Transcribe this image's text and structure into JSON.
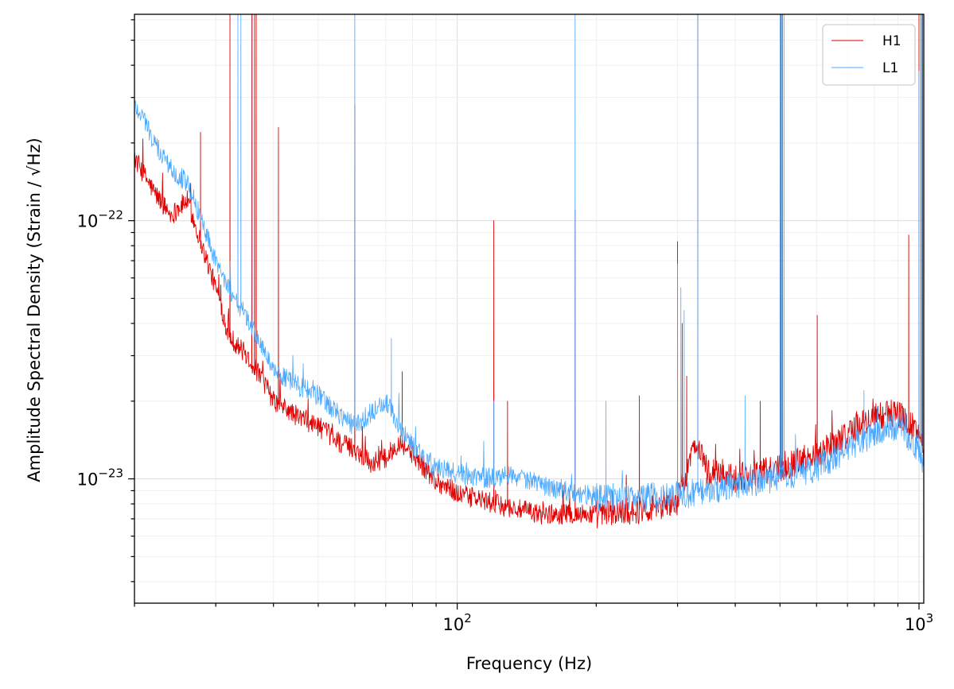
{
  "chart_data": {
    "type": "line",
    "title": "",
    "xlabel": "Frequency (Hz)",
    "ylabel": "Amplitude Spectral Density (Strain / √Hz)",
    "xscale": "log",
    "yscale": "log",
    "xlim": [
      20,
      1024
    ],
    "ylim": [
      3.3e-24,
      6.3e-22
    ],
    "x_ticks": [
      {
        "value": 100,
        "label_base": "10",
        "label_exp": "2"
      },
      {
        "value": 1000,
        "label_base": "10",
        "label_exp": "3"
      }
    ],
    "y_ticks": [
      {
        "value": 1e-23,
        "label_base": "10",
        "label_exp": "−23"
      },
      {
        "value": 1e-22,
        "label_base": "10",
        "label_exp": "−22"
      }
    ],
    "grid": true,
    "legend": "top-right",
    "series": [
      {
        "name": "H1",
        "color": "#e00000",
        "baseline": [
          [
            20,
            1.75e-22
          ],
          [
            22,
            1.3e-22
          ],
          [
            24,
            1.05e-22
          ],
          [
            26,
            1.2e-22
          ],
          [
            28,
            8e-23
          ],
          [
            30,
            5.5e-23
          ],
          [
            32,
            3.6e-23
          ],
          [
            35,
            3e-23
          ],
          [
            38,
            2.4e-23
          ],
          [
            40,
            2e-23
          ],
          [
            45,
            1.75e-23
          ],
          [
            50,
            1.6e-23
          ],
          [
            55,
            1.4e-23
          ],
          [
            60,
            1.3e-23
          ],
          [
            65,
            1.15e-23
          ],
          [
            70,
            1.2e-23
          ],
          [
            75,
            1.4e-23
          ],
          [
            80,
            1.25e-23
          ],
          [
            90,
            9.8e-24
          ],
          [
            100,
            8.8e-24
          ],
          [
            120,
            8e-24
          ],
          [
            150,
            7.3e-24
          ],
          [
            200,
            7.3e-24
          ],
          [
            250,
            7.6e-24
          ],
          [
            300,
            8.2e-24
          ],
          [
            330,
            1.4e-23
          ],
          [
            350,
            1.05e-23
          ],
          [
            380,
            1.05e-23
          ],
          [
            400,
            1e-23
          ],
          [
            500,
            1.1e-23
          ],
          [
            600,
            1.25e-23
          ],
          [
            700,
            1.5e-23
          ],
          [
            800,
            1.75e-23
          ],
          [
            900,
            1.8e-23
          ],
          [
            1000,
            1.5e-23
          ],
          [
            1024,
            1.3e-23
          ]
        ],
        "spikes": [
          [
            27.8,
            2.2e-22
          ],
          [
            32.2,
            6.3e-22
          ],
          [
            35.9,
            6.3e-22
          ],
          [
            36.4,
            6.3e-22
          ],
          [
            36.7,
            6.3e-22
          ],
          [
            41.0,
            2.3e-22
          ],
          [
            60.0,
            2.8e-22
          ],
          [
            76.0,
            2.6e-23
          ],
          [
            120.0,
            1e-22
          ],
          [
            128.5,
            2e-23
          ],
          [
            180.0,
            1.1e-22
          ],
          [
            248.0,
            2.1e-23
          ],
          [
            300.0,
            8.3e-23
          ],
          [
            307.0,
            4e-23
          ],
          [
            314.0,
            2.5e-23
          ],
          [
            331.9,
            6.3e-22
          ],
          [
            453.0,
            2e-23
          ],
          [
            502.0,
            6.3e-22
          ],
          [
            506.0,
            6.3e-22
          ],
          [
            602.0,
            4.3e-23
          ],
          [
            950.0,
            8.8e-23
          ],
          [
            1000.0,
            6.3e-22
          ],
          [
            1010.0,
            6.3e-22
          ],
          [
            1018.0,
            6.3e-22
          ]
        ]
      },
      {
        "name": "L1",
        "color": "#4aa8ff",
        "baseline": [
          [
            20,
            2.8e-22
          ],
          [
            21,
            2.5e-22
          ],
          [
            22,
            2e-22
          ],
          [
            24,
            1.6e-22
          ],
          [
            26,
            1.4e-22
          ],
          [
            28,
            1e-22
          ],
          [
            30,
            7e-23
          ],
          [
            32,
            5.5e-23
          ],
          [
            35,
            4.2e-23
          ],
          [
            38,
            3.2e-23
          ],
          [
            40,
            2.6e-23
          ],
          [
            45,
            2.3e-23
          ],
          [
            50,
            2.1e-23
          ],
          [
            55,
            1.8e-23
          ],
          [
            60,
            1.6e-23
          ],
          [
            65,
            1.8e-23
          ],
          [
            70,
            2e-23
          ],
          [
            75,
            1.6e-23
          ],
          [
            80,
            1.35e-23
          ],
          [
            90,
            1.1e-23
          ],
          [
            100,
            1.05e-23
          ],
          [
            120,
            1e-23
          ],
          [
            130,
            1.05e-23
          ],
          [
            150,
            9.5e-24
          ],
          [
            200,
            8.5e-24
          ],
          [
            250,
            8.5e-24
          ],
          [
            300,
            8.6e-24
          ],
          [
            350,
            9e-24
          ],
          [
            400,
            9.5e-24
          ],
          [
            500,
            1e-23
          ],
          [
            600,
            1.1e-23
          ],
          [
            700,
            1.3e-23
          ],
          [
            800,
            1.5e-23
          ],
          [
            900,
            1.6e-23
          ],
          [
            1000,
            1.3e-23
          ],
          [
            1024,
            1.15e-23
          ]
        ],
        "spikes": [
          [
            33.5,
            6.3e-22
          ],
          [
            34.0,
            6.3e-22
          ],
          [
            36.0,
            6.3e-22
          ],
          [
            60.0,
            6.3e-22
          ],
          [
            72.0,
            3.5e-23
          ],
          [
            120.0,
            2e-23
          ],
          [
            180.0,
            6.3e-22
          ],
          [
            210.0,
            2e-23
          ],
          [
            300.0,
            6.8e-23
          ],
          [
            305.0,
            5.5e-23
          ],
          [
            310.0,
            4.5e-23
          ],
          [
            331.9,
            6.3e-22
          ],
          [
            420.0,
            2.1e-23
          ],
          [
            500.0,
            6.3e-22
          ],
          [
            505.0,
            6.3e-22
          ],
          [
            510.0,
            6.3e-22
          ],
          [
            760.0,
            2.2e-23
          ],
          [
            1000.0,
            3.8e-22
          ],
          [
            1012.0,
            6.3e-22
          ]
        ]
      }
    ]
  }
}
